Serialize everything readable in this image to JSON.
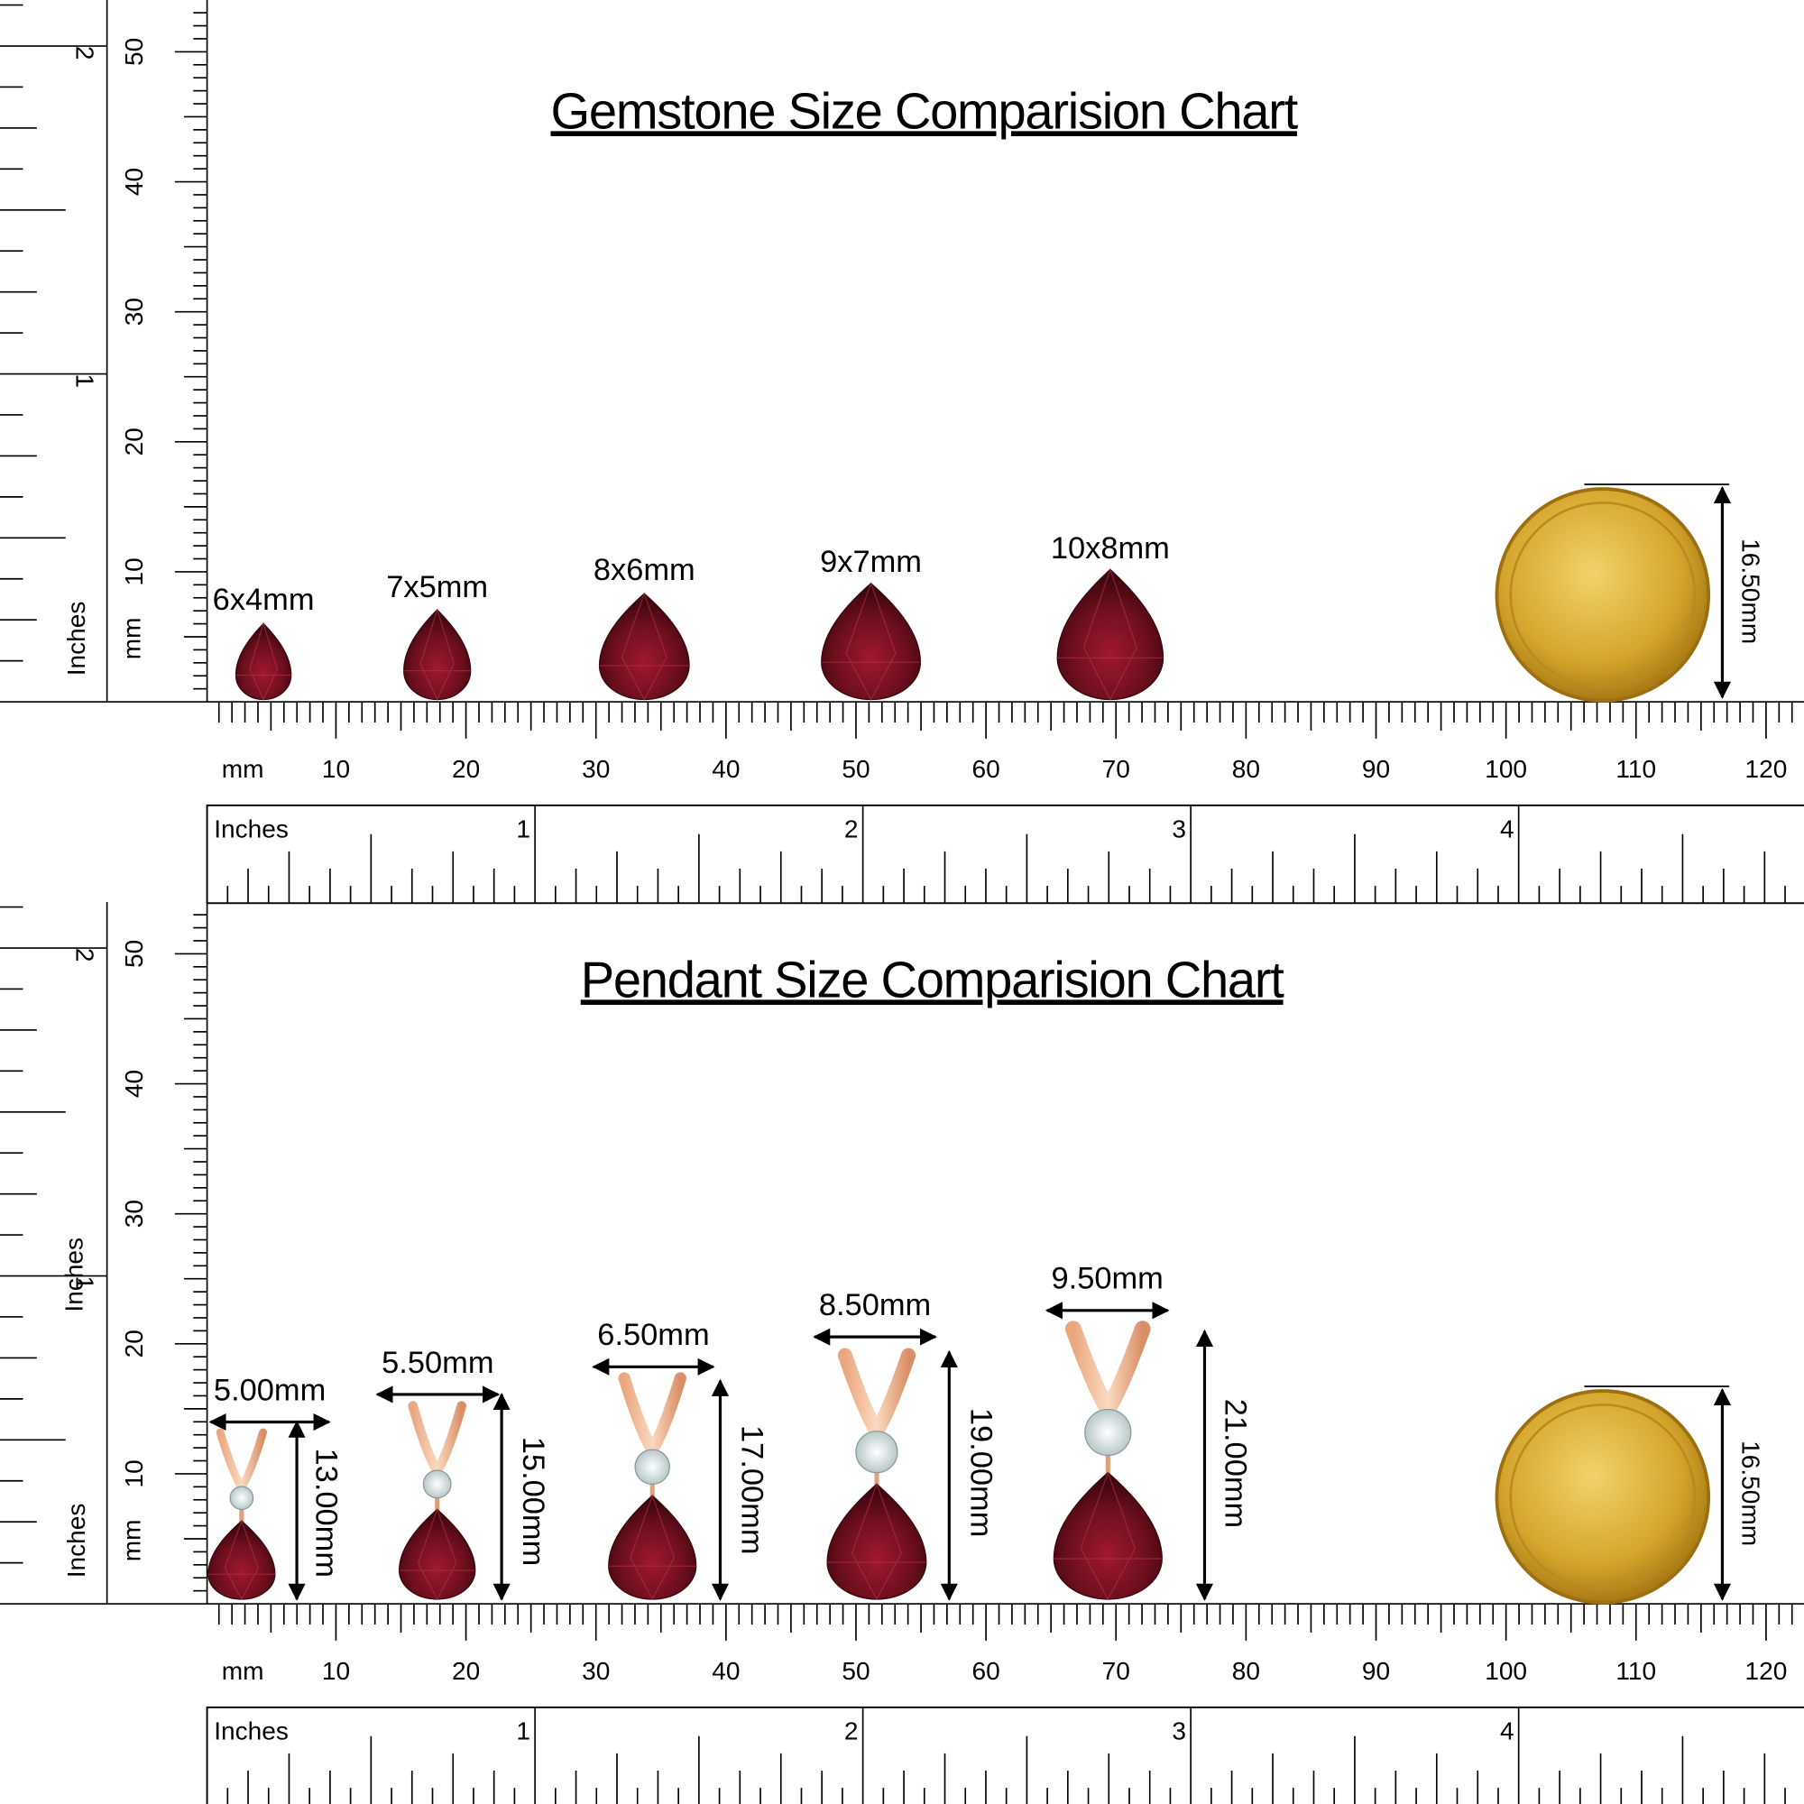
{
  "ruler": {
    "mm_unit": "mm",
    "inch_unit": "Inches",
    "mm_labels": [
      "10",
      "20",
      "30",
      "40",
      "50",
      "60",
      "70",
      "80",
      "90",
      "100",
      "110",
      "120"
    ],
    "inch_labels": [
      "1",
      "2",
      "3",
      "4"
    ]
  },
  "gemstone_chart": {
    "title": "Gemstone Size Comparision Chart",
    "items": [
      {
        "label": "6x4mm"
      },
      {
        "label": "7x5mm"
      },
      {
        "label": "8x6mm"
      },
      {
        "label": "9x7mm"
      },
      {
        "label": "10x8mm"
      }
    ],
    "coin_label": "16.50mm"
  },
  "pendant_chart": {
    "title": "Pendant Size Comparision Chart",
    "items": [
      {
        "width_label": "5.00mm",
        "height_label": "13.00mm"
      },
      {
        "width_label": "5.50mm",
        "height_label": "15.00mm"
      },
      {
        "width_label": "6.50mm",
        "height_label": "17.00mm"
      },
      {
        "width_label": "8.50mm",
        "height_label": "19.00mm"
      },
      {
        "width_label": "9.50mm",
        "height_label": "21.00mm"
      }
    ],
    "coin_label": "16.50mm"
  }
}
